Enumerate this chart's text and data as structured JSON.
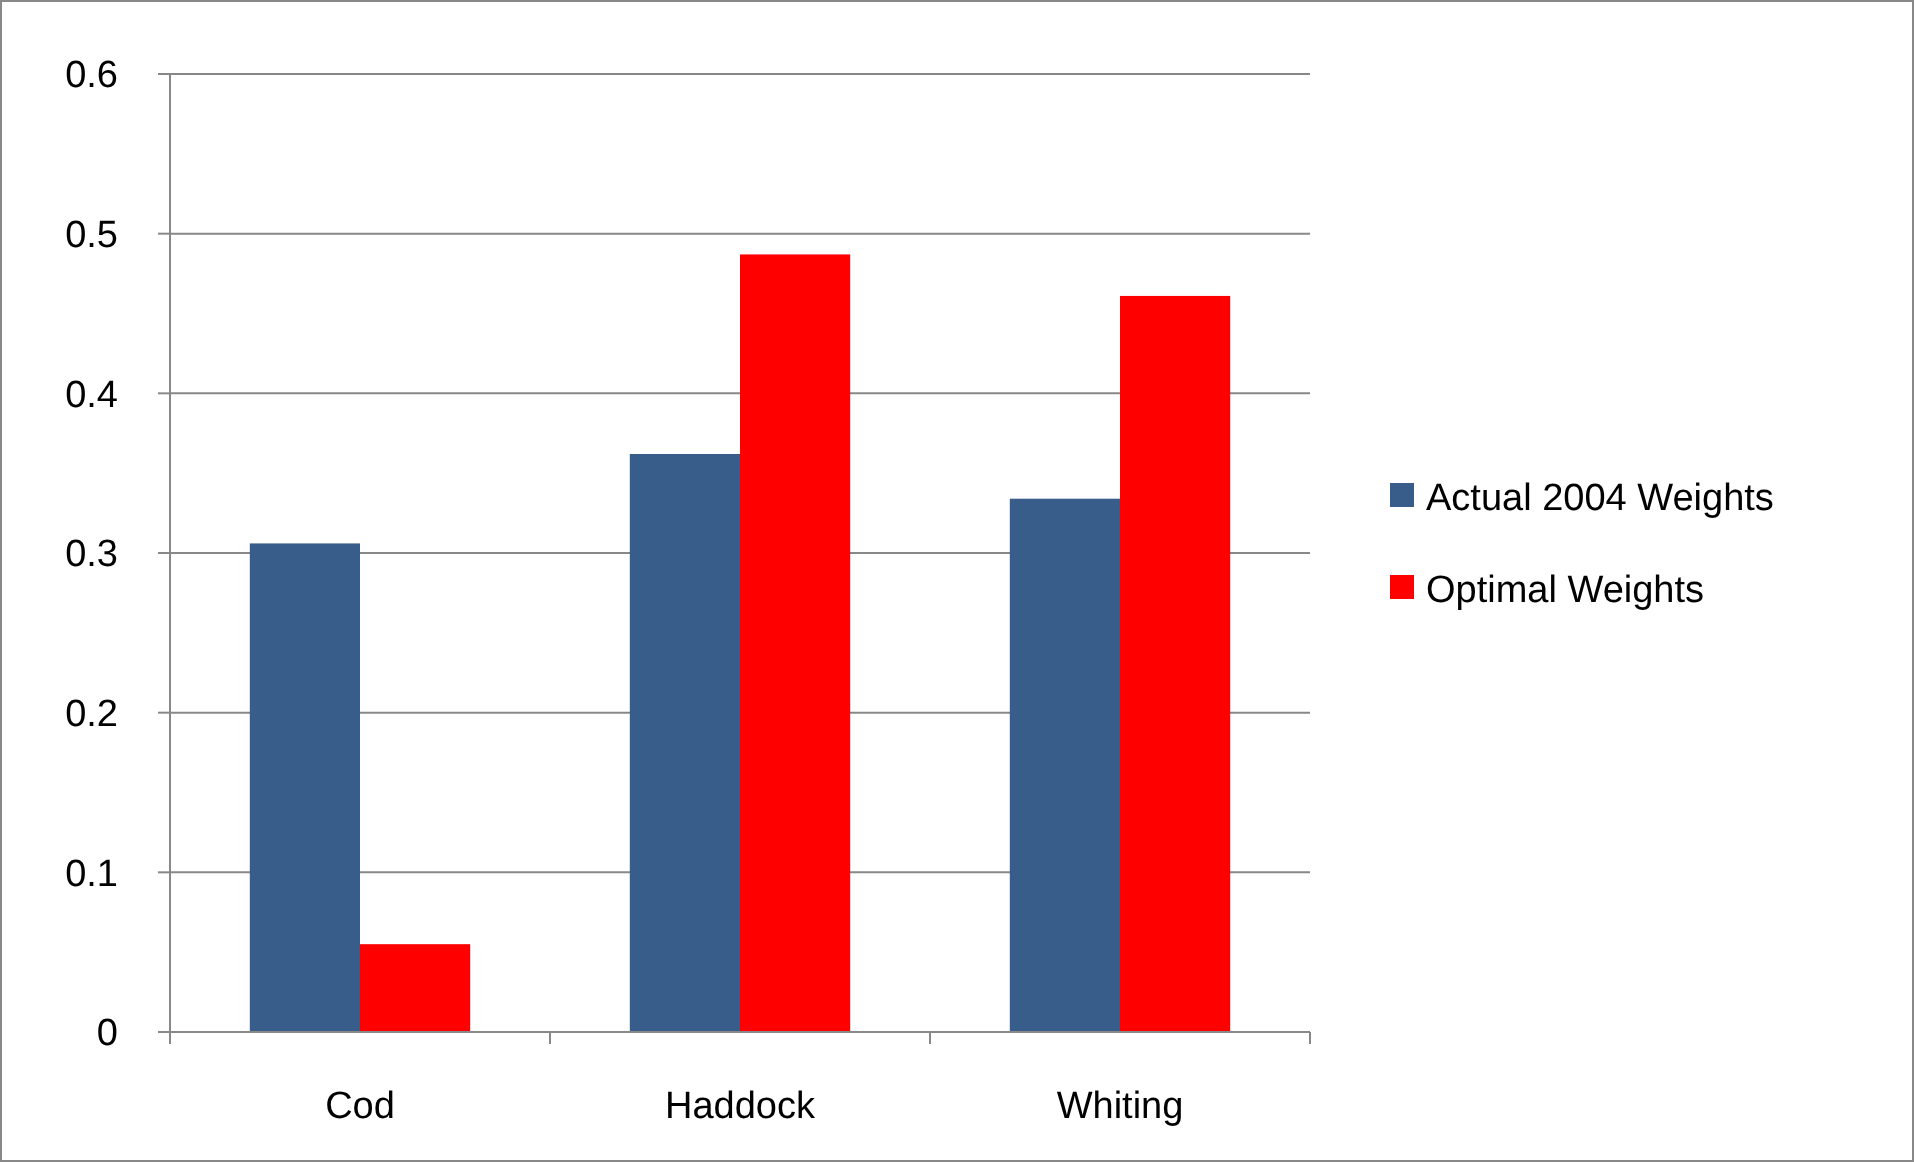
{
  "chart_data": {
    "type": "bar",
    "categories": [
      "Cod",
      "Haddock",
      "Whiting"
    ],
    "series": [
      {
        "name": "Actual 2004 Weights",
        "color": "#385d8a",
        "values": [
          0.306,
          0.362,
          0.334
        ]
      },
      {
        "name": "Optimal Weights",
        "color": "#ff0000",
        "values": [
          0.055,
          0.487,
          0.461
        ]
      }
    ],
    "ylim": [
      0,
      0.6
    ],
    "yticks": [
      {
        "value": 0,
        "label": "0"
      },
      0.1,
      0.2,
      0.3,
      0.4,
      0.5,
      0.6
    ],
    "grid": "y",
    "legend": "right"
  }
}
